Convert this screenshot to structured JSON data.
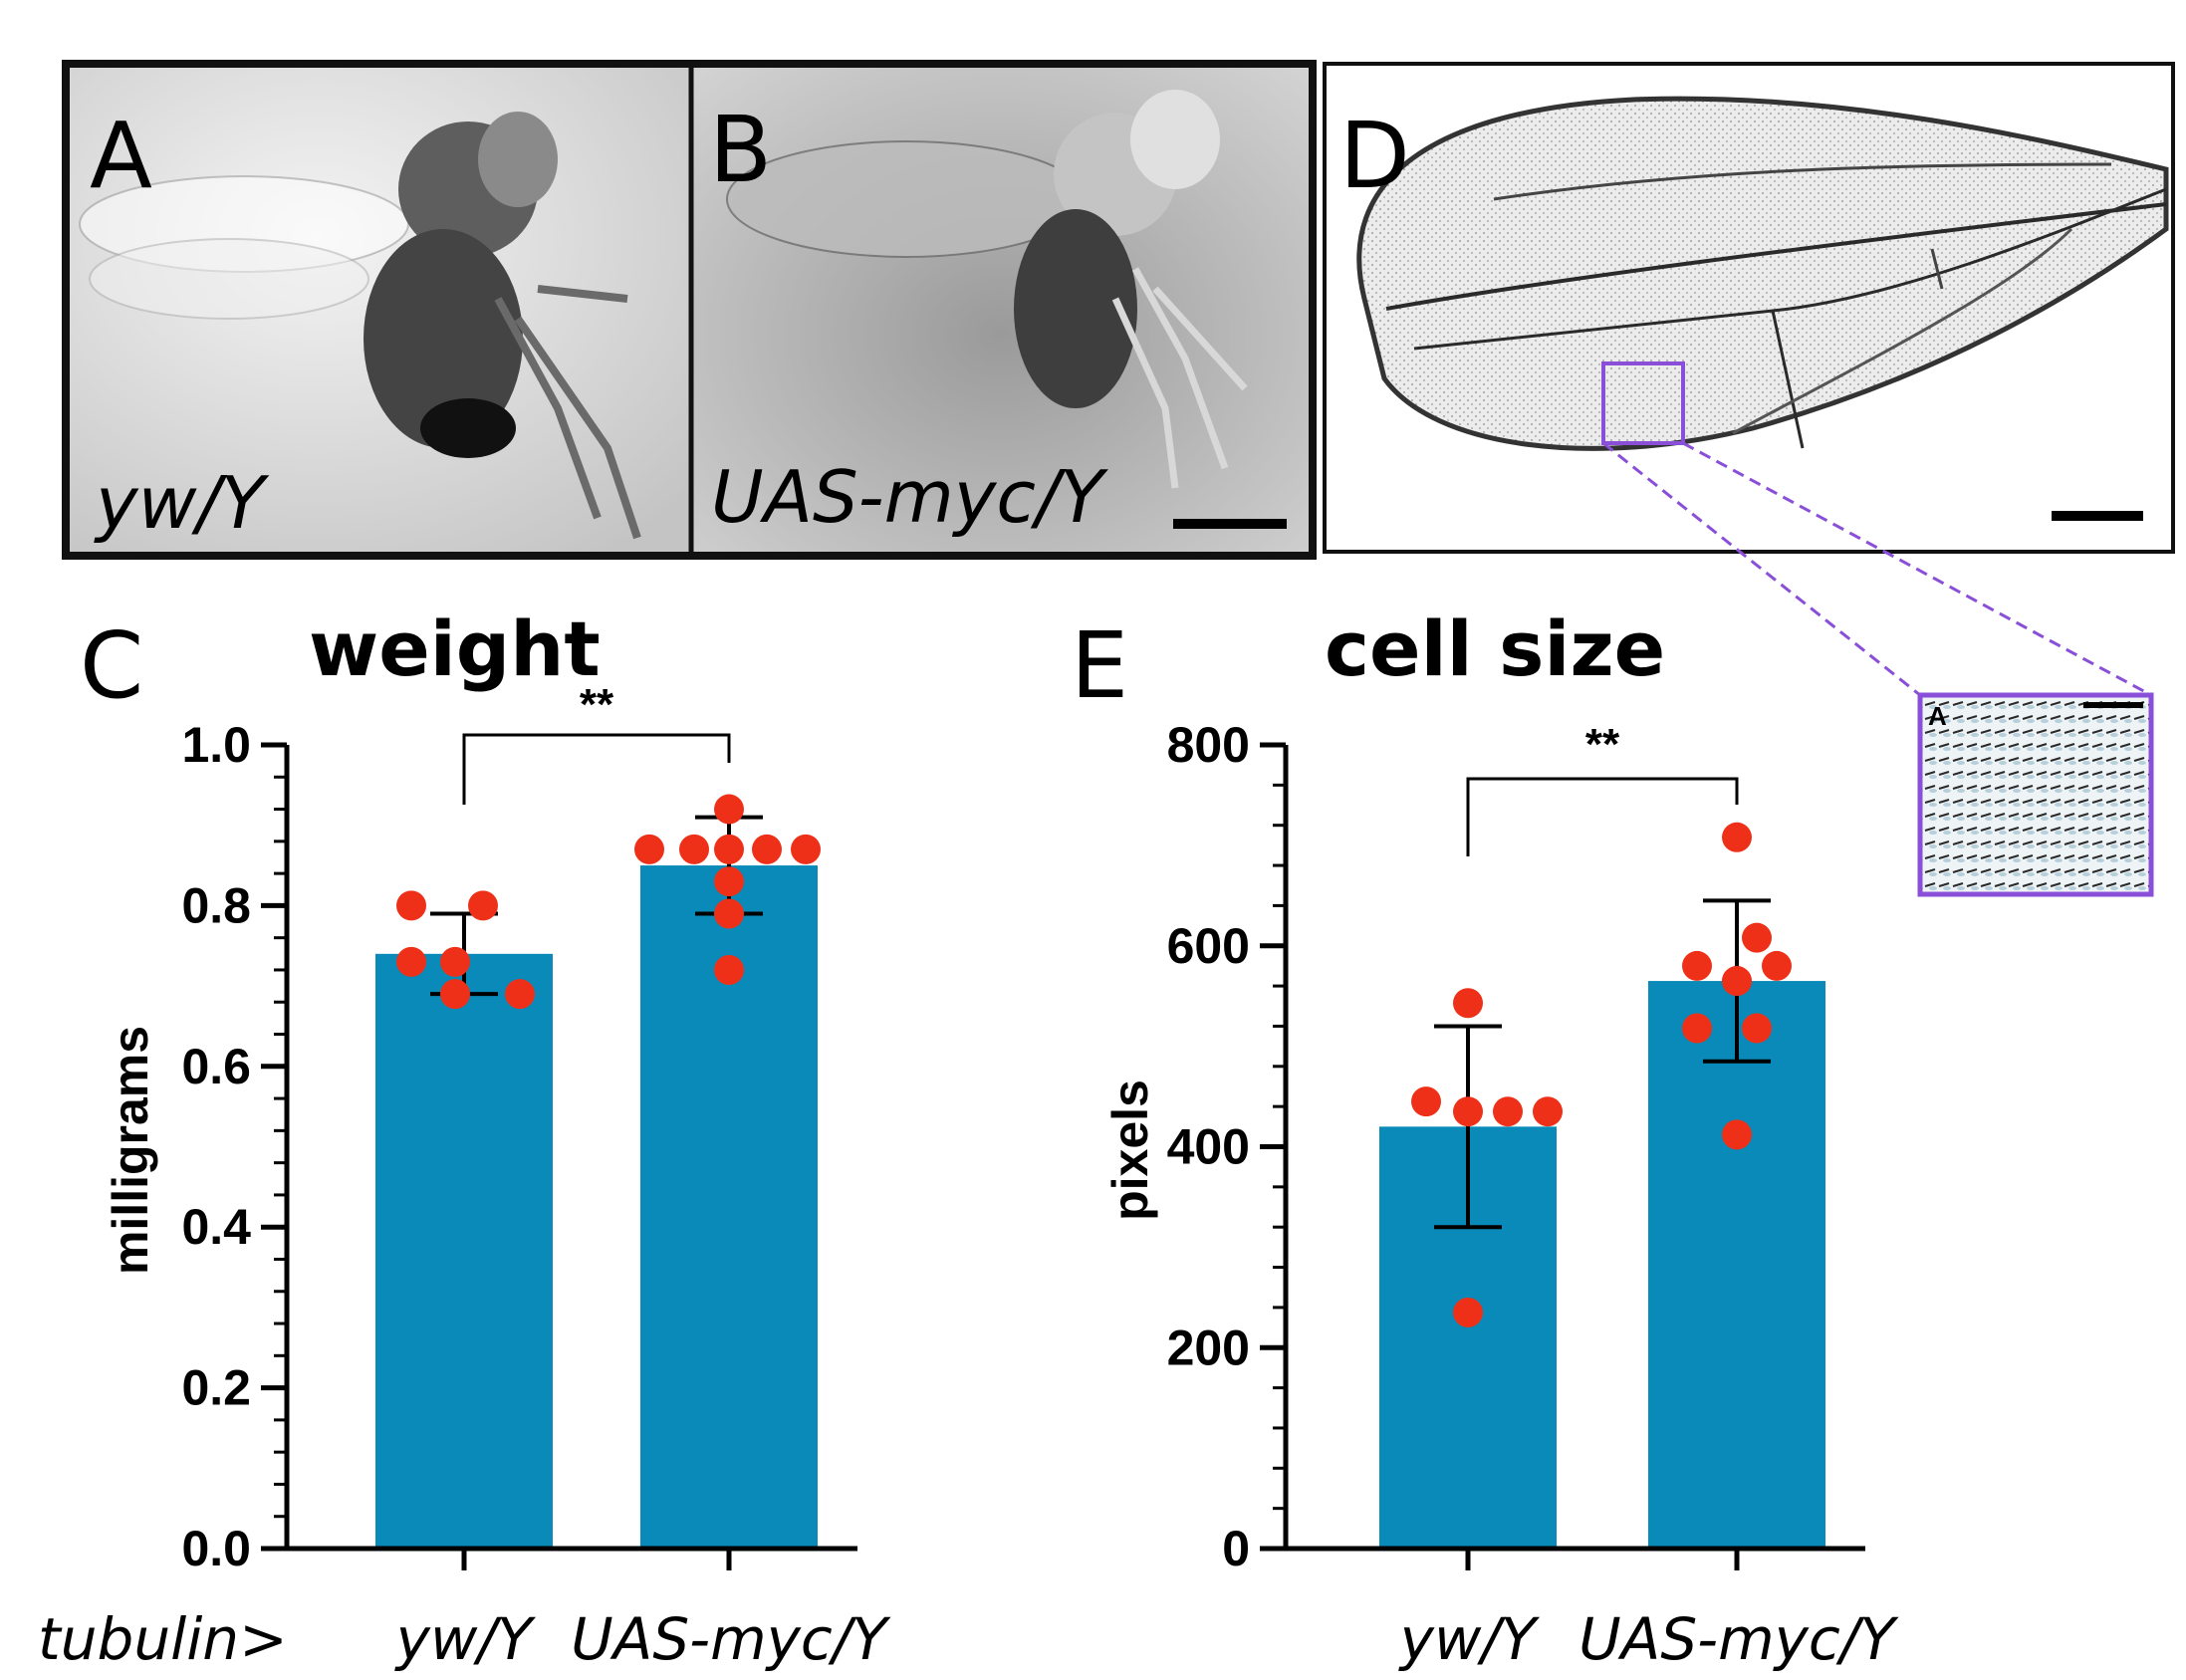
{
  "panels": {
    "A": {
      "letter": "A",
      "label": "yw/Y"
    },
    "B": {
      "letter": "B",
      "label": "UAS-myc/Y"
    },
    "D": {
      "letter": "D",
      "inset_letter": "A"
    }
  },
  "colors": {
    "bar": "#0a8ab8",
    "point": "#ee3018",
    "inset_frame": "#8a4fd8",
    "axis": "#000000"
  },
  "xaxis_prefix": "tubulin>",
  "chart_data": [
    {
      "id": "C",
      "letter": "C",
      "type": "bar",
      "title": "weight",
      "ylabel": "milligrams",
      "xlabel": "",
      "ylim": [
        0,
        1.0
      ],
      "yticks": [
        "0.0",
        "0.2",
        "0.4",
        "0.6",
        "0.8",
        "1.0"
      ],
      "categories": [
        "yw/Y",
        "UAS-myc/Y"
      ],
      "values": [
        0.74,
        0.85
      ],
      "error_sd": [
        0.05,
        0.06
      ],
      "points": [
        [
          0.8,
          0.8,
          0.73,
          0.73,
          0.69,
          0.69
        ],
        [
          0.92,
          0.87,
          0.87,
          0.87,
          0.87,
          0.87,
          0.83,
          0.79,
          0.72
        ]
      ],
      "significance": "**"
    },
    {
      "id": "E",
      "letter": "E",
      "type": "bar",
      "title": "cell size",
      "ylabel": "pixels",
      "xlabel": "",
      "ylim": [
        0,
        800
      ],
      "yticks": [
        "0",
        "200",
        "400",
        "600",
        "800"
      ],
      "categories": [
        "yw/Y",
        "UAS-myc/Y"
      ],
      "values": [
        420,
        565
      ],
      "error_sd": [
        100,
        80
      ],
      "points": [
        [
          543,
          445,
          435,
          435,
          435,
          235
        ],
        [
          708,
          608,
          580,
          580,
          565,
          565,
          518,
          518,
          412
        ]
      ],
      "significance": "**"
    }
  ]
}
